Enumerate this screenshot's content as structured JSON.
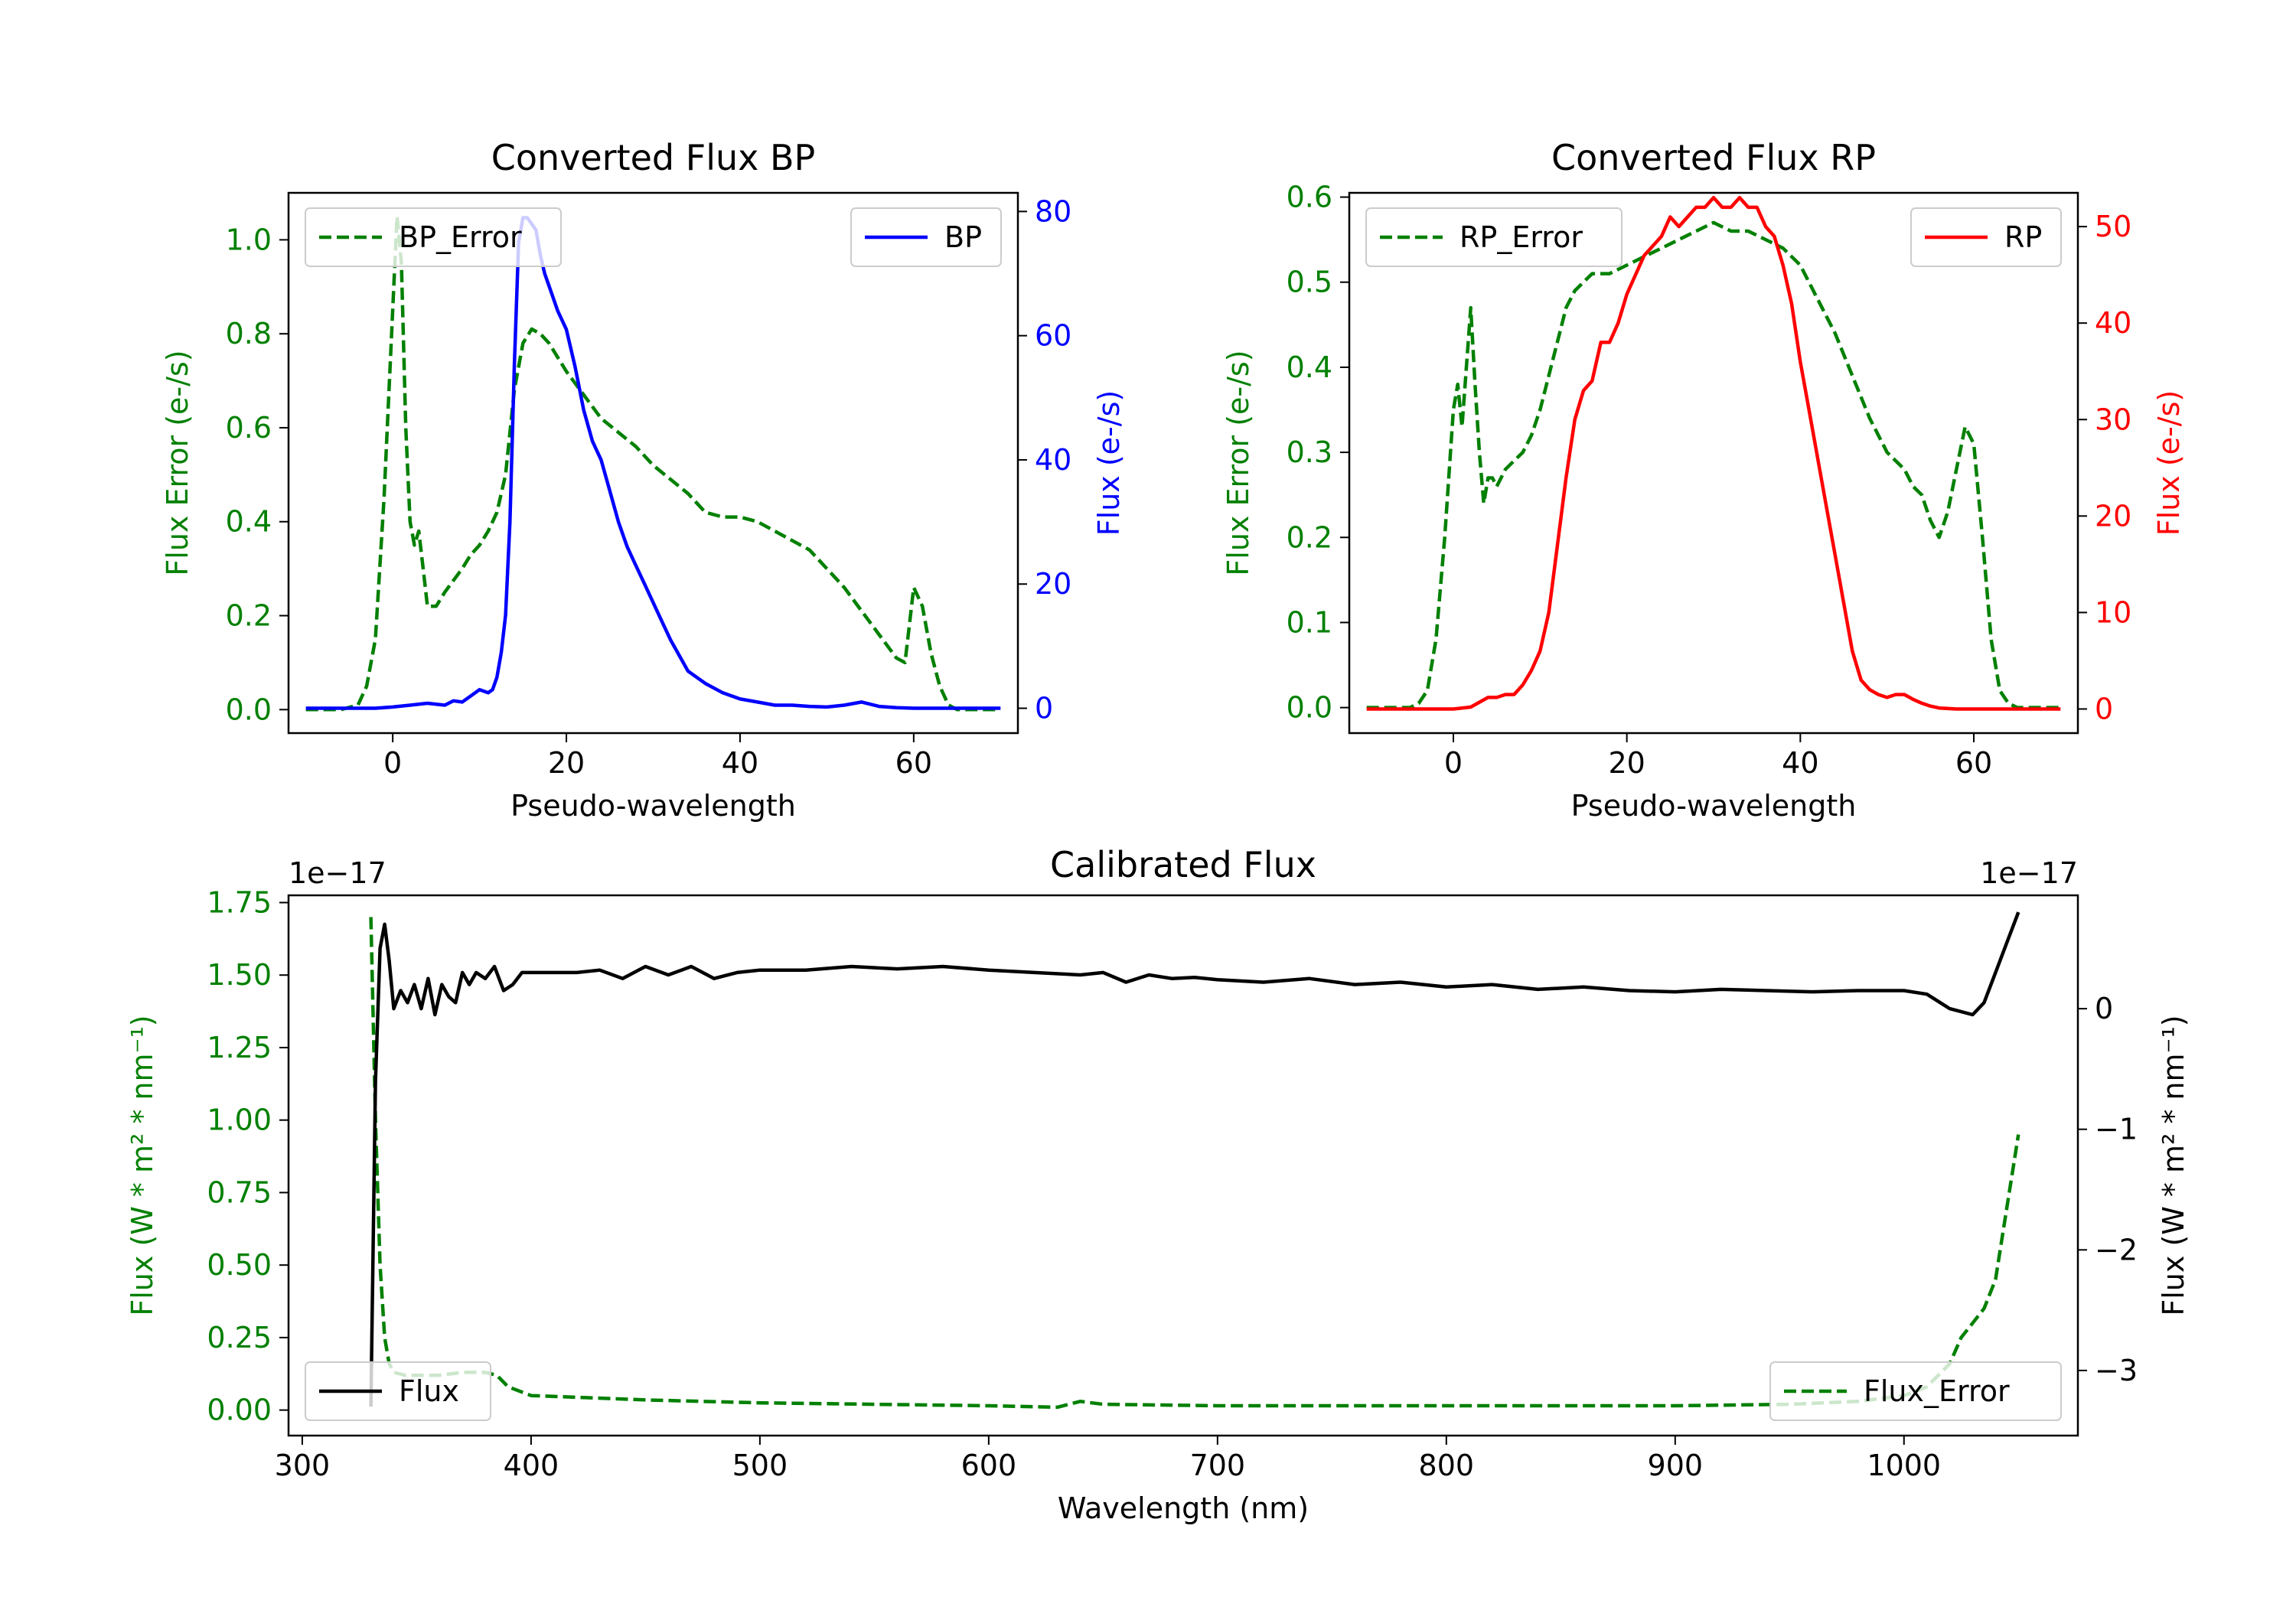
{
  "chart_data": [
    {
      "type": "line",
      "title": "Converted Flux BP",
      "xlabel": "Pseudo-wavelength",
      "xlim": [
        -12,
        72
      ],
      "xticks": [
        0,
        20,
        40,
        60
      ],
      "y_left": {
        "label": "Flux Error (e-/s)",
        "color": "#008000",
        "lim": [
          -0.05,
          1.1
        ],
        "ticks": [
          "0.0",
          "0.2",
          "0.4",
          "0.6",
          "0.8",
          "1.0"
        ],
        "tick_values": [
          0,
          0.2,
          0.4,
          0.6,
          0.8,
          1.0
        ]
      },
      "y_right": {
        "label": "Flux (e-/s)",
        "color": "#0000ff",
        "lim": [
          -4,
          83
        ],
        "ticks": [
          "0",
          "20",
          "40",
          "60",
          "80"
        ],
        "tick_values": [
          0,
          20,
          40,
          60,
          80
        ]
      },
      "legend_left": "BP_Error",
      "legend_right": "BP",
      "series": [
        {
          "name": "BP_Error",
          "axis": "left",
          "style": "dashed",
          "color": "#008000",
          "x": [
            -10,
            -6,
            -4,
            -3,
            -2,
            -1,
            0,
            0.5,
            1,
            1.5,
            2,
            2.5,
            3,
            3.5,
            4,
            5,
            6,
            8,
            9,
            10,
            11,
            12,
            13,
            14,
            15,
            16,
            17,
            18,
            19,
            20,
            22,
            24,
            26,
            28,
            30,
            32,
            34,
            36,
            38,
            40,
            42,
            44,
            46,
            48,
            50,
            52,
            54,
            56,
            58,
            59,
            60,
            61,
            62,
            63,
            64,
            65,
            66,
            67,
            68,
            69,
            70
          ],
          "values": [
            0,
            0,
            0.01,
            0.05,
            0.15,
            0.45,
            0.85,
            1.05,
            0.95,
            0.6,
            0.4,
            0.35,
            0.38,
            0.3,
            0.22,
            0.22,
            0.25,
            0.3,
            0.33,
            0.35,
            0.38,
            0.42,
            0.5,
            0.68,
            0.78,
            0.81,
            0.8,
            0.78,
            0.75,
            0.72,
            0.67,
            0.62,
            0.59,
            0.56,
            0.52,
            0.49,
            0.46,
            0.42,
            0.41,
            0.41,
            0.4,
            0.38,
            0.36,
            0.34,
            0.3,
            0.26,
            0.21,
            0.16,
            0.11,
            0.1,
            0.26,
            0.22,
            0.12,
            0.05,
            0.01,
            0,
            0,
            0,
            0,
            0,
            0
          ]
        },
        {
          "name": "BP",
          "axis": "right",
          "style": "solid",
          "color": "#0000ff",
          "x": [
            -10,
            -6,
            -2,
            0,
            2,
            4,
            6,
            7,
            8,
            9,
            10,
            11,
            11.5,
            12,
            12.5,
            13,
            13.5,
            14,
            14.5,
            15,
            15.5,
            16,
            16.5,
            17,
            17.5,
            18,
            19,
            20,
            21,
            22,
            23,
            24,
            25,
            26,
            27,
            28,
            29,
            30,
            31,
            32,
            34,
            36,
            38,
            40,
            42,
            44,
            46,
            48,
            50,
            52,
            54,
            56,
            58,
            60,
            62,
            64,
            66,
            68,
            70
          ],
          "values": [
            0,
            0,
            0,
            0.2,
            0.5,
            0.8,
            0.5,
            1.2,
            1,
            2,
            3,
            2.5,
            3,
            5,
            9,
            15,
            30,
            55,
            75,
            79,
            79,
            78,
            77,
            73,
            70,
            68,
            64,
            61,
            55,
            48,
            43,
            40,
            35,
            30,
            26,
            23,
            20,
            17,
            14,
            11,
            6,
            4,
            2.5,
            1.5,
            1,
            0.5,
            0.5,
            0.3,
            0.2,
            0.5,
            1,
            0.3,
            0.1,
            0,
            0,
            0,
            0,
            0,
            0
          ]
        }
      ]
    },
    {
      "type": "line",
      "title": "Converted Flux RP",
      "xlabel": "Pseudo-wavelength",
      "xlim": [
        -12,
        72
      ],
      "xticks": [
        0,
        20,
        40,
        60
      ],
      "y_left": {
        "label": "Flux Error (e-/s)",
        "color": "#008000",
        "lim": [
          -0.03,
          0.605
        ],
        "ticks": [
          "0.0",
          "0.1",
          "0.2",
          "0.3",
          "0.4",
          "0.5",
          "0.6"
        ],
        "tick_values": [
          0,
          0.1,
          0.2,
          0.3,
          0.4,
          0.5,
          0.6
        ]
      },
      "y_right": {
        "label": "Flux (e-/s)",
        "color": "#ff0000",
        "lim": [
          -2.5,
          53.5
        ],
        "ticks": [
          "0",
          "10",
          "20",
          "30",
          "40",
          "50"
        ],
        "tick_values": [
          0,
          10,
          20,
          30,
          40,
          50
        ]
      },
      "legend_left": "RP_Error",
      "legend_right": "RP",
      "series": [
        {
          "name": "RP_Error",
          "axis": "left",
          "style": "dashed",
          "color": "#008000",
          "x": [
            -10,
            -5,
            -4,
            -3,
            -2,
            -1,
            0,
            0.5,
            1,
            1.5,
            2,
            2.5,
            3,
            3.5,
            4,
            4.5,
            5,
            6,
            7,
            8,
            9,
            10,
            12,
            13,
            14,
            15,
            16,
            18,
            20,
            22,
            24,
            26,
            28,
            30,
            32,
            34,
            36,
            38,
            40,
            42,
            44,
            46,
            48,
            50,
            52,
            53,
            54,
            55,
            56,
            57,
            58,
            59,
            60,
            61,
            62,
            63,
            64,
            65,
            66,
            68,
            70
          ],
          "values": [
            0,
            0,
            0.005,
            0.02,
            0.08,
            0.2,
            0.35,
            0.38,
            0.33,
            0.4,
            0.47,
            0.38,
            0.3,
            0.24,
            0.27,
            0.27,
            0.26,
            0.28,
            0.29,
            0.3,
            0.32,
            0.35,
            0.43,
            0.47,
            0.49,
            0.5,
            0.51,
            0.51,
            0.52,
            0.53,
            0.54,
            0.55,
            0.56,
            0.57,
            0.56,
            0.56,
            0.55,
            0.54,
            0.52,
            0.48,
            0.44,
            0.39,
            0.34,
            0.3,
            0.28,
            0.26,
            0.25,
            0.22,
            0.2,
            0.23,
            0.28,
            0.33,
            0.31,
            0.2,
            0.08,
            0.02,
            0.005,
            0,
            0,
            0,
            0
          ]
        },
        {
          "name": "RP",
          "axis": "right",
          "style": "solid",
          "color": "#ff0000",
          "x": [
            -10,
            -6,
            0,
            2,
            4,
            5,
            6,
            7,
            8,
            9,
            10,
            11,
            12,
            13,
            14,
            15,
            16,
            17,
            18,
            19,
            20,
            21,
            22,
            23,
            24,
            25,
            26,
            27,
            28,
            29,
            30,
            31,
            32,
            33,
            34,
            35,
            36,
            37,
            38,
            39,
            40,
            41,
            42,
            43,
            44,
            45,
            46,
            47,
            48,
            49,
            50,
            51,
            52,
            53,
            54,
            55,
            56,
            58,
            60,
            62,
            64,
            66,
            68,
            70
          ],
          "values": [
            0,
            0,
            0,
            0.2,
            1.2,
            1.2,
            1.5,
            1.5,
            2.5,
            4,
            6,
            10,
            17,
            24,
            30,
            33,
            34,
            38,
            38,
            40,
            43,
            45,
            47,
            48,
            49,
            51,
            50,
            51,
            52,
            52,
            53,
            52,
            52,
            53,
            52,
            52,
            50,
            49,
            46,
            42,
            36,
            31,
            26,
            21,
            16,
            11,
            6,
            3,
            2,
            1.5,
            1.2,
            1.5,
            1.5,
            1,
            0.6,
            0.3,
            0.1,
            0,
            0,
            0,
            0,
            0,
            0,
            0
          ]
        }
      ]
    },
    {
      "type": "line",
      "title": "Calibrated Flux",
      "xlabel": "Wavelength (nm)",
      "xlim": [
        294,
        1076
      ],
      "xticks": [
        300,
        400,
        500,
        600,
        700,
        800,
        900,
        1000
      ],
      "y_left": {
        "label": "Flux (W * m² * nm⁻¹)",
        "color": "#008000",
        "lim": [
          -0.088,
          1.775
        ],
        "ticks": [
          "0.00",
          "0.25",
          "0.50",
          "0.75",
          "1.00",
          "1.25",
          "1.50",
          "1.75"
        ],
        "tick_values": [
          0,
          0.25,
          0.5,
          0.75,
          1.0,
          1.25,
          1.5,
          1.75
        ],
        "offset": "1e−17"
      },
      "y_right": {
        "label": "Flux (W * m² * nm⁻¹)",
        "color": "#000000",
        "lim": [
          -3.54,
          0.94
        ],
        "ticks": [
          "−3",
          "−2",
          "−1",
          "0"
        ],
        "tick_values": [
          -3,
          -2,
          -1,
          0
        ],
        "offset": "1e−17"
      },
      "legend_left": "Flux",
      "legend_right": "Flux_Error",
      "series": [
        {
          "name": "Flux_Error",
          "axis": "left",
          "style": "dashed",
          "color": "#008000",
          "x": [
            330,
            332,
            334,
            336,
            338,
            340,
            345,
            350,
            360,
            370,
            380,
            385,
            390,
            400,
            450,
            500,
            550,
            600,
            630,
            640,
            650,
            700,
            750,
            800,
            850,
            900,
            950,
            980,
            1000,
            1010,
            1020,
            1025,
            1030,
            1035,
            1040,
            1045,
            1050
          ],
          "values": [
            1.7,
            1.0,
            0.5,
            0.25,
            0.16,
            0.13,
            0.12,
            0.12,
            0.12,
            0.13,
            0.13,
            0.12,
            0.08,
            0.05,
            0.035,
            0.025,
            0.02,
            0.015,
            0.01,
            0.03,
            0.02,
            0.015,
            0.015,
            0.015,
            0.015,
            0.015,
            0.02,
            0.03,
            0.05,
            0.08,
            0.16,
            0.25,
            0.3,
            0.35,
            0.45,
            0.7,
            0.95
          ]
        },
        {
          "name": "Flux",
          "axis": "right",
          "style": "solid",
          "color": "#000000",
          "x": [
            330,
            332,
            334,
            336,
            338,
            340,
            343,
            346,
            349,
            352,
            355,
            358,
            361,
            364,
            367,
            370,
            373,
            376,
            380,
            384,
            388,
            392,
            396,
            400,
            410,
            420,
            430,
            440,
            450,
            460,
            470,
            480,
            490,
            500,
            520,
            540,
            560,
            580,
            600,
            620,
            640,
            650,
            660,
            670,
            680,
            690,
            700,
            720,
            740,
            760,
            780,
            800,
            820,
            840,
            860,
            880,
            900,
            920,
            940,
            960,
            980,
            1000,
            1010,
            1020,
            1030,
            1035,
            1040,
            1045,
            1050
          ],
          "values": [
            -3.3,
            -0.6,
            0.5,
            0.7,
            0.4,
            0.0,
            0.15,
            0.05,
            0.2,
            0.0,
            0.25,
            -0.05,
            0.2,
            0.1,
            0.05,
            0.3,
            0.2,
            0.3,
            0.25,
            0.35,
            0.15,
            0.2,
            0.3,
            0.3,
            0.3,
            0.3,
            0.32,
            0.25,
            0.35,
            0.28,
            0.35,
            0.25,
            0.3,
            0.32,
            0.32,
            0.35,
            0.33,
            0.35,
            0.32,
            0.3,
            0.28,
            0.3,
            0.22,
            0.28,
            0.25,
            0.26,
            0.24,
            0.22,
            0.25,
            0.2,
            0.22,
            0.18,
            0.2,
            0.16,
            0.18,
            0.15,
            0.14,
            0.16,
            0.15,
            0.14,
            0.15,
            0.15,
            0.12,
            0.0,
            -0.05,
            0.05,
            0.3,
            0.55,
            0.8
          ]
        }
      ]
    }
  ]
}
